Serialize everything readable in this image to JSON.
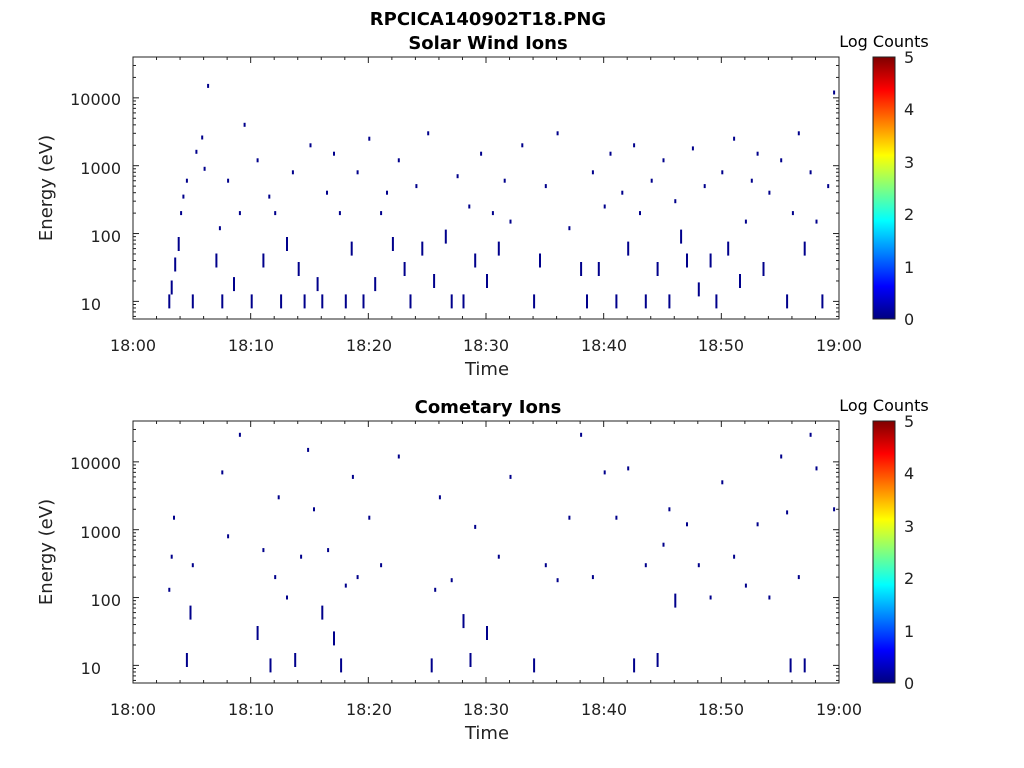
{
  "figure_title": "RPCICA140902T18.PNG",
  "chart_data": [
    {
      "type": "heatmap",
      "title": "Solar Wind Ions",
      "xlabel": "Time",
      "ylabel": "Energy (eV)",
      "x_ticks": [
        "18:00",
        "18:10",
        "18:20",
        "18:30",
        "18:40",
        "18:50",
        "19:00"
      ],
      "x_range_minutes": [
        0,
        60
      ],
      "y_ticks": [
        "10",
        "100",
        "1000",
        "10000"
      ],
      "y_scale": "log",
      "ylim": [
        5.5,
        40000
      ],
      "colorbar": {
        "label": "Log Counts",
        "min": 0,
        "max": 5,
        "ticks": [
          "0",
          "1",
          "2",
          "3",
          "4",
          "5"
        ]
      },
      "marks": [
        [
          3.0,
          10
        ],
        [
          3.2,
          16
        ],
        [
          3.5,
          35
        ],
        [
          3.8,
          70
        ],
        [
          4.0,
          200
        ],
        [
          4.2,
          350
        ],
        [
          4.5,
          600
        ],
        [
          5.0,
          10
        ],
        [
          5.3,
          1600
        ],
        [
          5.8,
          2600
        ],
        [
          6.0,
          900
        ],
        [
          6.3,
          15000
        ],
        [
          7.0,
          40
        ],
        [
          7.3,
          120
        ],
        [
          7.5,
          10
        ],
        [
          8.0,
          600
        ],
        [
          8.5,
          18
        ],
        [
          9.0,
          200
        ],
        [
          9.4,
          4000
        ],
        [
          10.0,
          10
        ],
        [
          10.5,
          1200
        ],
        [
          11.0,
          40
        ],
        [
          11.5,
          350
        ],
        [
          12.0,
          200
        ],
        [
          12.5,
          10
        ],
        [
          13.0,
          70
        ],
        [
          13.5,
          800
        ],
        [
          14.0,
          30
        ],
        [
          14.5,
          10
        ],
        [
          15.0,
          2000
        ],
        [
          15.6,
          18
        ],
        [
          16.0,
          10
        ],
        [
          16.4,
          400
        ],
        [
          17.0,
          1500
        ],
        [
          17.5,
          200
        ],
        [
          18.0,
          10
        ],
        [
          18.5,
          60
        ],
        [
          19.0,
          800
        ],
        [
          19.5,
          10
        ],
        [
          20.0,
          2500
        ],
        [
          20.5,
          18
        ],
        [
          21.0,
          200
        ],
        [
          21.5,
          400
        ],
        [
          22.0,
          70
        ],
        [
          22.5,
          1200
        ],
        [
          23.0,
          30
        ],
        [
          23.5,
          10
        ],
        [
          24.0,
          500
        ],
        [
          24.5,
          60
        ],
        [
          25.0,
          3000
        ],
        [
          25.5,
          20
        ],
        [
          26.5,
          90
        ],
        [
          27.0,
          10
        ],
        [
          27.5,
          700
        ],
        [
          28.0,
          10
        ],
        [
          28.5,
          250
        ],
        [
          29.0,
          40
        ],
        [
          29.5,
          1500
        ],
        [
          30.0,
          20
        ],
        [
          30.5,
          200
        ],
        [
          31.0,
          60
        ],
        [
          31.5,
          600
        ],
        [
          32.0,
          150
        ],
        [
          33.0,
          2000
        ],
        [
          34.0,
          10
        ],
        [
          34.5,
          40
        ],
        [
          35.0,
          500
        ],
        [
          36.0,
          3000
        ],
        [
          37.0,
          120
        ],
        [
          38.0,
          30
        ],
        [
          38.5,
          10
        ],
        [
          39.0,
          800
        ],
        [
          39.5,
          30
        ],
        [
          40.0,
          250
        ],
        [
          40.5,
          1500
        ],
        [
          41.0,
          10
        ],
        [
          41.5,
          400
        ],
        [
          42.0,
          60
        ],
        [
          42.5,
          2000
        ],
        [
          43.0,
          200
        ],
        [
          43.5,
          10
        ],
        [
          44.0,
          600
        ],
        [
          44.5,
          30
        ],
        [
          45.0,
          1200
        ],
        [
          45.5,
          10
        ],
        [
          46.0,
          300
        ],
        [
          46.5,
          90
        ],
        [
          47.0,
          40
        ],
        [
          47.5,
          1800
        ],
        [
          48.0,
          15
        ],
        [
          48.5,
          500
        ],
        [
          49.0,
          40
        ],
        [
          49.5,
          10
        ],
        [
          50.0,
          800
        ],
        [
          50.5,
          60
        ],
        [
          51.0,
          2500
        ],
        [
          51.5,
          20
        ],
        [
          52.0,
          150
        ],
        [
          52.5,
          600
        ],
        [
          53.0,
          1500
        ],
        [
          53.5,
          30
        ],
        [
          54.0,
          400
        ],
        [
          55.0,
          1200
        ],
        [
          55.5,
          10
        ],
        [
          56.0,
          200
        ],
        [
          56.5,
          3000
        ],
        [
          57.0,
          60
        ],
        [
          57.5,
          800
        ],
        [
          58.0,
          150
        ],
        [
          58.5,
          10
        ],
        [
          59.0,
          500
        ],
        [
          59.5,
          12000
        ]
      ]
    },
    {
      "type": "heatmap",
      "title": "Cometary Ions",
      "xlabel": "Time",
      "ylabel": "Energy (eV)",
      "x_ticks": [
        "18:00",
        "18:10",
        "18:20",
        "18:30",
        "18:40",
        "18:50",
        "19:00"
      ],
      "x_range_minutes": [
        0,
        60
      ],
      "y_ticks": [
        "10",
        "100",
        "1000",
        "10000"
      ],
      "y_scale": "log",
      "ylim": [
        5.5,
        40000
      ],
      "colorbar": {
        "label": "Log Counts",
        "min": 0,
        "max": 5,
        "ticks": [
          "0",
          "1",
          "2",
          "3",
          "4",
          "5"
        ]
      },
      "marks": [
        [
          3.0,
          130
        ],
        [
          3.2,
          400
        ],
        [
          3.4,
          1500
        ],
        [
          4.5,
          12
        ],
        [
          4.8,
          60
        ],
        [
          5.0,
          300
        ],
        [
          7.5,
          7000
        ],
        [
          8.0,
          800
        ],
        [
          9.0,
          25000
        ],
        [
          10.5,
          30
        ],
        [
          11.0,
          500
        ],
        [
          11.6,
          10
        ],
        [
          12.0,
          200
        ],
        [
          12.3,
          3000
        ],
        [
          13.0,
          100
        ],
        [
          13.7,
          12
        ],
        [
          14.2,
          400
        ],
        [
          14.8,
          15000
        ],
        [
          15.3,
          2000
        ],
        [
          16.0,
          60
        ],
        [
          16.5,
          500
        ],
        [
          17.0,
          25
        ],
        [
          17.6,
          10
        ],
        [
          18.0,
          150
        ],
        [
          18.6,
          6000
        ],
        [
          19.0,
          200
        ],
        [
          20.0,
          1500
        ],
        [
          21.0,
          300
        ],
        [
          22.5,
          12000
        ],
        [
          25.3,
          10
        ],
        [
          25.6,
          130
        ],
        [
          26.0,
          3000
        ],
        [
          27.0,
          180
        ],
        [
          28.0,
          45
        ],
        [
          28.6,
          12
        ],
        [
          29.0,
          1100
        ],
        [
          30.0,
          30
        ],
        [
          31.0,
          400
        ],
        [
          32.0,
          6000
        ],
        [
          34.0,
          10
        ],
        [
          35.0,
          300
        ],
        [
          36.0,
          180
        ],
        [
          37.0,
          1500
        ],
        [
          38.0,
          25000
        ],
        [
          39.0,
          200
        ],
        [
          40.0,
          7000
        ],
        [
          41.0,
          1500
        ],
        [
          42.0,
          8000
        ],
        [
          42.5,
          10
        ],
        [
          43.5,
          300
        ],
        [
          44.5,
          12
        ],
        [
          45.0,
          600
        ],
        [
          45.5,
          2000
        ],
        [
          46.0,
          90
        ],
        [
          47.0,
          1200
        ],
        [
          48.0,
          300
        ],
        [
          49.0,
          100
        ],
        [
          50.0,
          5000
        ],
        [
          51.0,
          400
        ],
        [
          52.0,
          150
        ],
        [
          53.0,
          1200
        ],
        [
          54.0,
          100
        ],
        [
          55.0,
          12000
        ],
        [
          55.5,
          1800
        ],
        [
          55.8,
          10
        ],
        [
          56.5,
          200
        ],
        [
          57.0,
          10
        ],
        [
          57.5,
          25000
        ],
        [
          58.0,
          8000
        ],
        [
          59.5,
          2000
        ]
      ]
    }
  ]
}
